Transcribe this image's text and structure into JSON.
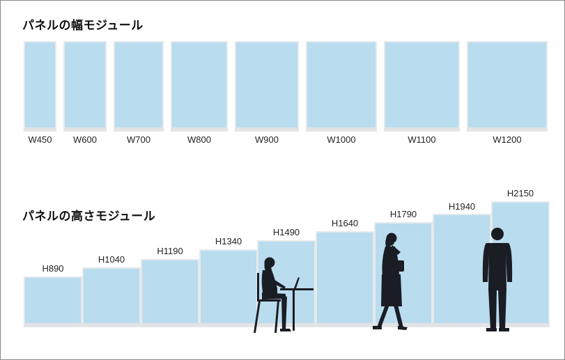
{
  "width_section": {
    "heading": "パネルの幅モジュール",
    "panels": [
      {
        "label": "W450"
      },
      {
        "label": "W600"
      },
      {
        "label": "W700"
      },
      {
        "label": "W800"
      },
      {
        "label": "W900"
      },
      {
        "label": "W1000"
      },
      {
        "label": "W1100"
      },
      {
        "label": "W1200"
      }
    ]
  },
  "height_section": {
    "heading": "パネルの高さモジュール",
    "panels": [
      {
        "label": "H890"
      },
      {
        "label": "H1040"
      },
      {
        "label": "H1190"
      },
      {
        "label": "H1340"
      },
      {
        "label": "H1490"
      },
      {
        "label": "H1640"
      },
      {
        "label": "H1790"
      },
      {
        "label": "H1940"
      },
      {
        "label": "H2150"
      }
    ]
  },
  "colors": {
    "panel": "#b9dcee",
    "base": "#e2e4e6",
    "silhouette": "#1a1d24"
  },
  "silhouettes": [
    "seated-woman-at-laptop",
    "walking-woman-on-phone",
    "standing-man"
  ]
}
